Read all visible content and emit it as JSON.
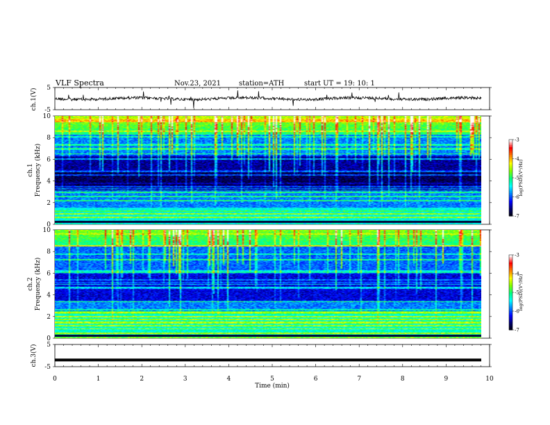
{
  "header": {
    "title": "VLF  Spectra",
    "date": "Nov.23, 2021",
    "station": "station=ATH",
    "start": "start  UT  =    19: 10: 1"
  },
  "chart_data": [
    {
      "type": "line",
      "panel": "ch1-waveform",
      "ylabel": "ch.1(V)",
      "ylim": [
        -5,
        5
      ],
      "yticks": [
        5,
        -5
      ],
      "description_series": "broadband waveform, baseline near 0 V with sporadic spikes"
    },
    {
      "type": "heatmap",
      "panel": "ch1-spectrogram",
      "ylabel": "ch.1\nFrequency (kHz)",
      "ylim": [
        0,
        10
      ],
      "yticks": [
        0,
        2,
        4,
        6,
        8,
        10
      ],
      "colorbar": {
        "label": "log(PSD)(V²/Hz)",
        "range": [
          -7,
          -3
        ],
        "ticks": [
          -3,
          -4,
          -5,
          -6,
          -7
        ]
      }
    },
    {
      "type": "heatmap",
      "panel": "ch2-spectrogram",
      "ylabel": "ch.2\nFrequency (kHz)",
      "ylim": [
        0,
        10
      ],
      "yticks": [
        0,
        2,
        4,
        6,
        8,
        10
      ],
      "colorbar": {
        "label": "log(PSD)(V²/Hz)",
        "range": [
          -7,
          -3
        ],
        "ticks": [
          -3,
          -4,
          -5,
          -6,
          -7
        ]
      }
    },
    {
      "type": "line",
      "panel": "ch3-waveform",
      "ylabel": "ch.3(V)",
      "ylim": [
        -5,
        5
      ],
      "yticks": [
        5,
        -5
      ],
      "values_constant": -2
    }
  ],
  "xaxis": {
    "label": "Time  (min)",
    "ticks": [
      0,
      1,
      2,
      3,
      4,
      5,
      6,
      7,
      8,
      9,
      10
    ],
    "xlim": [
      0,
      10
    ],
    "data_end": 9.8
  },
  "colors": {
    "scale": [
      "#000000",
      "#00006a",
      "#0000ff",
      "#0080ff",
      "#00ffff",
      "#00ff80",
      "#80ff00",
      "#ffff00",
      "#ff8000",
      "#ff0000",
      "#ffffff"
    ]
  }
}
